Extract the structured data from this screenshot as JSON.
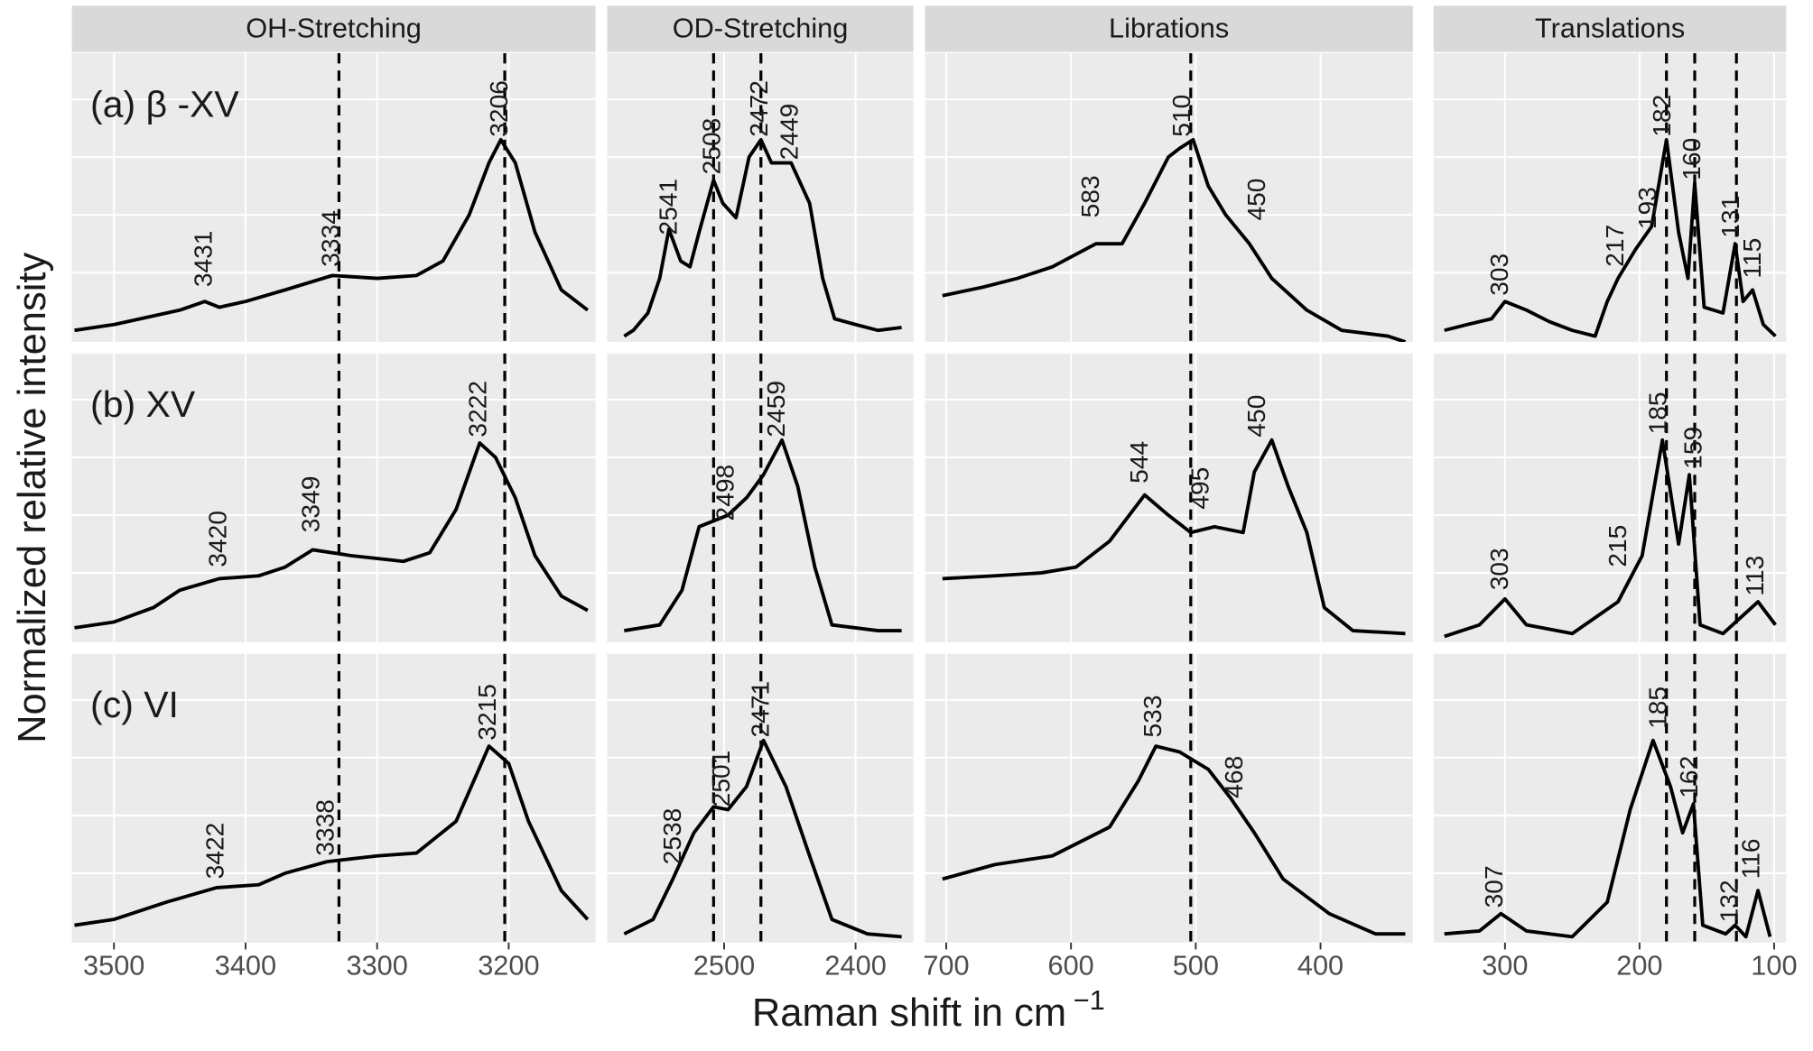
{
  "figure": {
    "columns": [
      "OH-Stretching",
      "OD-Stretching",
      "Librations",
      "Translations"
    ],
    "rows": [
      "(a)  β -XV",
      "(b) XV",
      "(c) VI"
    ],
    "xlabel": "Raman shift in  cm",
    "xlabel_exponent": "−1",
    "ylabel": "Normalized relative intensity"
  },
  "chart_data": [
    {
      "type": "line",
      "color": "#000000",
      "grid": true,
      "xlim": [
        3532,
        3134
      ],
      "xticks": [
        3500,
        3400,
        3300,
        3200
      ],
      "ylim": [
        0,
        1
      ],
      "x": [
        3530,
        3500,
        3450,
        3431,
        3420,
        3400,
        3370,
        3334,
        3300,
        3270,
        3250,
        3230,
        3215,
        3206,
        3195,
        3180,
        3160,
        3140
      ],
      "values": [
        0.04,
        0.06,
        0.11,
        0.14,
        0.12,
        0.14,
        0.18,
        0.23,
        0.22,
        0.23,
        0.28,
        0.44,
        0.62,
        0.7,
        0.62,
        0.38,
        0.18,
        0.11
      ],
      "vlines": [
        3329,
        3203
      ],
      "annotations": [
        {
          "x": 3431,
          "y": 0.19
        },
        {
          "x": 3334,
          "y": 0.26
        },
        {
          "x": 3206,
          "y": 0.71
        }
      ]
    },
    {
      "type": "line",
      "color": "#000000",
      "grid": true,
      "xlim": [
        2589,
        2356
      ],
      "xticks": [
        2500,
        2400
      ],
      "ylim": [
        0,
        1
      ],
      "x": [
        2576,
        2569,
        2558,
        2549,
        2542,
        2533,
        2526,
        2519,
        2508,
        2501,
        2491,
        2481,
        2472,
        2464,
        2449,
        2435,
        2425,
        2416,
        2400,
        2383,
        2365
      ],
      "values": [
        0.02,
        0.04,
        0.1,
        0.22,
        0.39,
        0.28,
        0.26,
        0.38,
        0.56,
        0.48,
        0.43,
        0.64,
        0.7,
        0.62,
        0.62,
        0.48,
        0.22,
        0.08,
        0.06,
        0.04,
        0.05
      ],
      "vlines": [
        2508,
        2472
      ],
      "annotations": [
        {
          "x": 2541,
          "y": 0.37
        },
        {
          "x": 2508,
          "y": 0.58
        },
        {
          "x": 2472,
          "y": 0.71
        },
        {
          "x": 2449,
          "y": 0.63
        }
      ]
    },
    {
      "type": "line",
      "color": "#000000",
      "grid": true,
      "xlim": [
        717,
        326
      ],
      "xticks": [
        700,
        600,
        500,
        400
      ],
      "ylim": [
        0,
        1
      ],
      "x": [
        703,
        670,
        643,
        615,
        580,
        559,
        541,
        522,
        513,
        502,
        490,
        476,
        457,
        439,
        411,
        383,
        346,
        332
      ],
      "values": [
        0.16,
        0.19,
        0.22,
        0.26,
        0.34,
        0.34,
        0.48,
        0.64,
        0.67,
        0.7,
        0.54,
        0.44,
        0.34,
        0.22,
        0.11,
        0.04,
        0.02,
        0.0
      ],
      "vlines": [
        504
      ],
      "annotations": [
        {
          "x": 583,
          "y": 0.43
        },
        {
          "x": 510,
          "y": 0.71
        },
        {
          "x": 450,
          "y": 0.42
        }
      ]
    },
    {
      "type": "line",
      "color": "#000000",
      "grid": true,
      "xlim": [
        353,
        91
      ],
      "xticks": [
        300,
        200,
        100
      ],
      "ylim": [
        0,
        1
      ],
      "x": [
        345,
        328,
        310,
        300,
        284,
        267,
        250,
        233,
        224,
        216,
        203,
        191,
        180,
        171,
        164,
        159,
        152,
        138,
        129,
        123,
        116,
        108,
        99
      ],
      "values": [
        0.04,
        0.06,
        0.08,
        0.14,
        0.11,
        0.07,
        0.04,
        0.02,
        0.14,
        0.22,
        0.32,
        0.4,
        0.7,
        0.38,
        0.22,
        0.55,
        0.12,
        0.1,
        0.34,
        0.14,
        0.18,
        0.06,
        0.02
      ],
      "vlines": [
        180,
        159,
        128
      ],
      "annotations": [
        {
          "x": 303,
          "y": 0.16
        },
        {
          "x": 217,
          "y": 0.26
        },
        {
          "x": 193,
          "y": 0.39
        },
        {
          "x": 182,
          "y": 0.71
        },
        {
          "x": 160,
          "y": 0.56
        },
        {
          "x": 131,
          "y": 0.36
        },
        {
          "x": 115,
          "y": 0.22
        }
      ]
    },
    {
      "type": "line",
      "color": "#000000",
      "grid": true,
      "xlim": [
        3532,
        3134
      ],
      "xticks": [
        3500,
        3400,
        3300,
        3200
      ],
      "ylim": [
        0,
        1
      ],
      "x": [
        3530,
        3500,
        3470,
        3450,
        3420,
        3390,
        3370,
        3349,
        3320,
        3280,
        3260,
        3240,
        3222,
        3210,
        3195,
        3180,
        3160,
        3140
      ],
      "values": [
        0.05,
        0.07,
        0.12,
        0.18,
        0.22,
        0.23,
        0.26,
        0.32,
        0.3,
        0.28,
        0.31,
        0.46,
        0.69,
        0.64,
        0.5,
        0.3,
        0.16,
        0.11
      ],
      "vlines": [
        3329,
        3203
      ],
      "annotations": [
        {
          "x": 3420,
          "y": 0.26
        },
        {
          "x": 3349,
          "y": 0.38
        },
        {
          "x": 3222,
          "y": 0.71
        }
      ]
    },
    {
      "type": "line",
      "color": "#000000",
      "grid": true,
      "xlim": [
        2589,
        2356
      ],
      "xticks": [
        2500,
        2400
      ],
      "ylim": [
        0,
        1
      ],
      "x": [
        2576,
        2549,
        2532,
        2519,
        2508,
        2497,
        2483,
        2470,
        2456,
        2444,
        2431,
        2418,
        2383,
        2365
      ],
      "values": [
        0.04,
        0.06,
        0.18,
        0.4,
        0.42,
        0.44,
        0.5,
        0.58,
        0.7,
        0.54,
        0.26,
        0.06,
        0.04,
        0.04
      ],
      "vlines": [
        2508,
        2472
      ],
      "annotations": [
        {
          "x": 2498,
          "y": 0.42
        },
        {
          "x": 2459,
          "y": 0.71
        }
      ]
    },
    {
      "type": "line",
      "color": "#000000",
      "grid": true,
      "xlim": [
        717,
        326
      ],
      "xticks": [
        700,
        600,
        500,
        400
      ],
      "ylim": [
        0,
        1
      ],
      "x": [
        703,
        661,
        624,
        596,
        569,
        541,
        522,
        504,
        485,
        462,
        453,
        439,
        426,
        411,
        397,
        374,
        332
      ],
      "values": [
        0.22,
        0.23,
        0.24,
        0.26,
        0.35,
        0.51,
        0.44,
        0.38,
        0.4,
        0.38,
        0.59,
        0.7,
        0.54,
        0.38,
        0.12,
        0.04,
        0.03
      ],
      "vlines": [
        504
      ],
      "annotations": [
        {
          "x": 544,
          "y": 0.55
        },
        {
          "x": 495,
          "y": 0.46
        },
        {
          "x": 450,
          "y": 0.71
        }
      ]
    },
    {
      "type": "line",
      "color": "#000000",
      "grid": true,
      "xlim": [
        353,
        91
      ],
      "xticks": [
        300,
        200,
        100
      ],
      "ylim": [
        0,
        1
      ],
      "x": [
        345,
        319,
        300,
        284,
        250,
        216,
        198,
        183,
        171,
        163,
        155,
        138,
        112,
        99
      ],
      "values": [
        0.02,
        0.06,
        0.15,
        0.06,
        0.03,
        0.14,
        0.3,
        0.7,
        0.34,
        0.58,
        0.06,
        0.03,
        0.14,
        0.06
      ],
      "vlines": [
        180,
        159,
        128
      ],
      "annotations": [
        {
          "x": 303,
          "y": 0.18
        },
        {
          "x": 215,
          "y": 0.26
        },
        {
          "x": 185,
          "y": 0.72
        },
        {
          "x": 159,
          "y": 0.6
        },
        {
          "x": 113,
          "y": 0.16
        }
      ]
    },
    {
      "type": "line",
      "color": "#000000",
      "grid": true,
      "xlim": [
        3532,
        3134
      ],
      "xticks": [
        3500,
        3400,
        3300,
        3200
      ],
      "ylim": [
        0,
        1
      ],
      "x": [
        3530,
        3500,
        3460,
        3422,
        3390,
        3370,
        3338,
        3300,
        3270,
        3240,
        3215,
        3200,
        3185,
        3160,
        3140
      ],
      "values": [
        0.06,
        0.08,
        0.14,
        0.19,
        0.2,
        0.24,
        0.28,
        0.3,
        0.31,
        0.42,
        0.68,
        0.62,
        0.42,
        0.18,
        0.08
      ],
      "vlines": [
        3329,
        3203
      ],
      "annotations": [
        {
          "x": 3422,
          "y": 0.22
        },
        {
          "x": 3338,
          "y": 0.3
        },
        {
          "x": 3215,
          "y": 0.7
        }
      ]
    },
    {
      "type": "line",
      "color": "#000000",
      "grid": true,
      "xlim": [
        2589,
        2356
      ],
      "xticks": [
        2500,
        2400
      ],
      "ylim": [
        0,
        1
      ],
      "x": [
        2576,
        2554,
        2539,
        2523,
        2508,
        2497,
        2483,
        2470,
        2453,
        2435,
        2418,
        2391,
        2365
      ],
      "values": [
        0.03,
        0.08,
        0.22,
        0.38,
        0.47,
        0.46,
        0.54,
        0.7,
        0.54,
        0.3,
        0.08,
        0.03,
        0.02
      ],
      "vlines": [
        2508,
        2472
      ],
      "annotations": [
        {
          "x": 2538,
          "y": 0.27
        },
        {
          "x": 2501,
          "y": 0.47
        },
        {
          "x": 2471,
          "y": 0.71
        }
      ]
    },
    {
      "type": "line",
      "color": "#000000",
      "grid": true,
      "xlim": [
        717,
        326
      ],
      "xticks": [
        700,
        600,
        500,
        400
      ],
      "ylim": [
        0,
        1
      ],
      "x": [
        703,
        661,
        615,
        569,
        546,
        532,
        513,
        490,
        472,
        453,
        430,
        393,
        356,
        332
      ],
      "values": [
        0.22,
        0.27,
        0.3,
        0.4,
        0.56,
        0.68,
        0.66,
        0.6,
        0.5,
        0.38,
        0.22,
        0.1,
        0.03,
        0.03
      ],
      "vlines": [
        504
      ],
      "annotations": [
        {
          "x": 533,
          "y": 0.71
        },
        {
          "x": 468,
          "y": 0.5
        }
      ]
    },
    {
      "type": "line",
      "color": "#000000",
      "grid": true,
      "xlim": [
        353,
        91
      ],
      "xticks": [
        300,
        200,
        100
      ],
      "ylim": [
        0,
        1
      ],
      "x": [
        345,
        319,
        303,
        284,
        250,
        224,
        207,
        190,
        177,
        168,
        160,
        153,
        136,
        129,
        121,
        112,
        103
      ],
      "values": [
        0.03,
        0.04,
        0.1,
        0.04,
        0.02,
        0.14,
        0.46,
        0.7,
        0.54,
        0.38,
        0.48,
        0.06,
        0.03,
        0.06,
        0.02,
        0.18,
        0.02
      ],
      "vlines": [
        180,
        159,
        128
      ],
      "annotations": [
        {
          "x": 307,
          "y": 0.12
        },
        {
          "x": 185,
          "y": 0.74
        },
        {
          "x": 162,
          "y": 0.5
        },
        {
          "x": 132,
          "y": 0.07
        },
        {
          "x": 116,
          "y": 0.22
        }
      ]
    }
  ]
}
